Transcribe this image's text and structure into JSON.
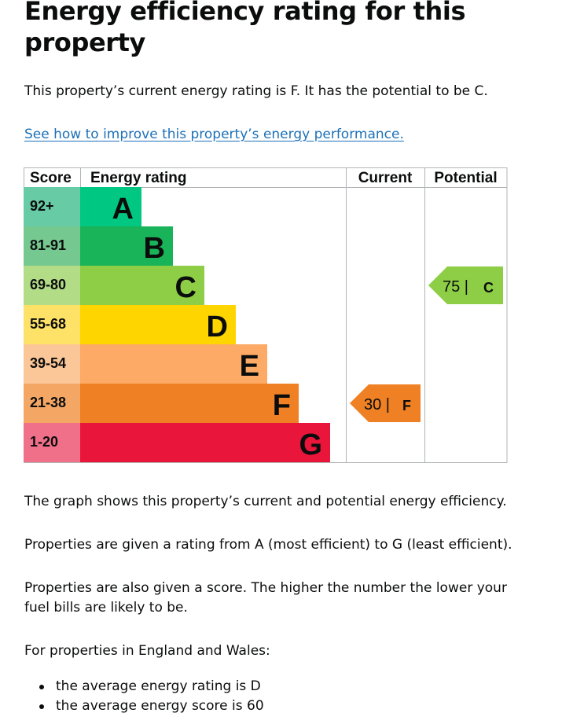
{
  "heading": "Energy efficiency rating for this property",
  "intro": "This property’s current energy rating is F. It has the potential to be C.",
  "link_text": "See how to improve this property’s energy performance.",
  "chart_data": {
    "type": "table",
    "headers": {
      "score": "Score",
      "rating": "Energy rating",
      "current": "Current",
      "potential": "Potential"
    },
    "bands": [
      {
        "score": "92+",
        "letter": "A",
        "color": "#00c781",
        "score_bg": "#67cba6"
      },
      {
        "score": "81-91",
        "letter": "B",
        "color": "#19b459",
        "score_bg": "#75c88f"
      },
      {
        "score": "69-80",
        "letter": "C",
        "color": "#8dce46",
        "score_bg": "#b3dc87"
      },
      {
        "score": "55-68",
        "letter": "D",
        "color": "#ffd500",
        "score_bg": "#fee267"
      },
      {
        "score": "39-54",
        "letter": "E",
        "color": "#fcaa65",
        "score_bg": "#fbc698"
      },
      {
        "score": "21-38",
        "letter": "F",
        "color": "#ef8023",
        "score_bg": "#f4a765"
      },
      {
        "score": "1-20",
        "letter": "G",
        "color": "#e9153b",
        "score_bg": "#f0708a"
      }
    ],
    "current": {
      "score": 30,
      "letter": "F",
      "color": "#ef8023"
    },
    "potential": {
      "score": 75,
      "letter": "C",
      "color": "#8dce46"
    }
  },
  "paragraphs": [
    "The graph shows this property’s current and potential energy efficiency.",
    "Properties are given a rating from A (most efficient) to G (least efficient).",
    "Properties are also given a score. The higher the number the lower your fuel bills are likely to be.",
    "For properties in England and Wales:"
  ],
  "bullets": [
    "the average energy rating is D",
    "the average energy score is 60"
  ]
}
